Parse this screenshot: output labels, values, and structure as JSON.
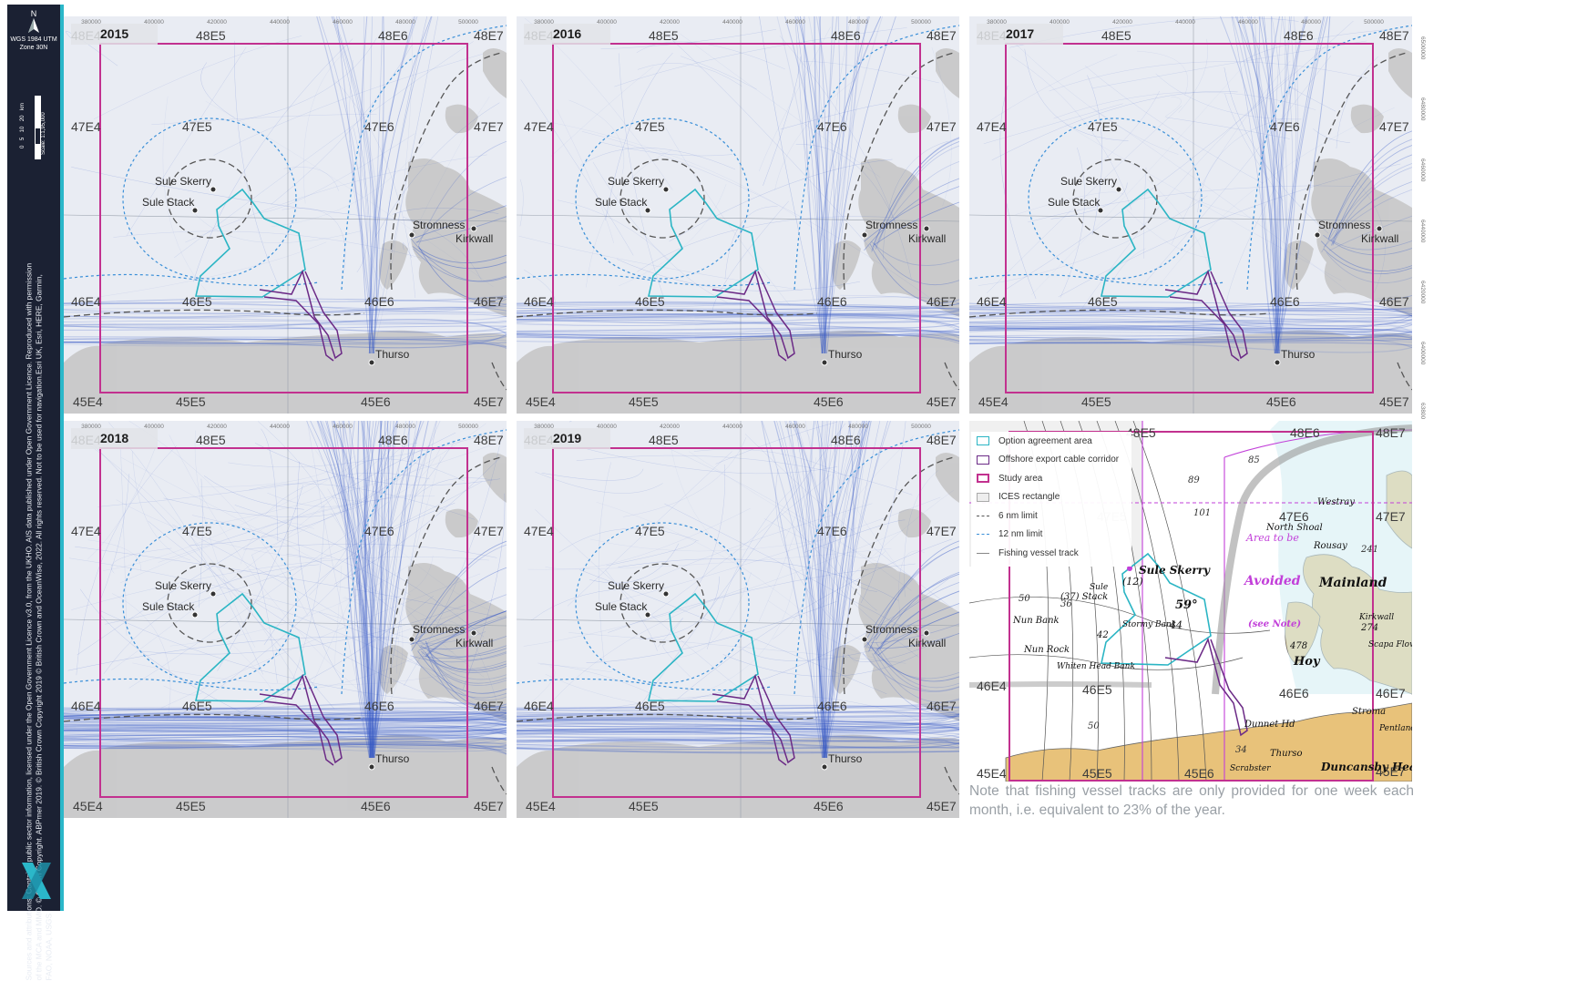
{
  "sidebar": {
    "north_symbol": "N",
    "crs_line1": "WGS 1984 UTM",
    "crs_line2": "Zone 30N",
    "scale_unit": "km",
    "scale_ticks": [
      "0",
      "5",
      "10",
      "20"
    ],
    "scale_text": "Scale: 1:1,95,000",
    "credits": "Sources and attributions: Contains public sector information, licensed under the Open Government Licence v3.0, from the UKHO. AIS data published under Open Government Licence. Reproduced with permission of the MCA and MMO. © Crown Copyright. ABPmer 2019. © British Crown Copyright 2019 © British Crown and OceanWise, 2022. All rights reserved. Not to be used for navigation.Esri UK, Esri, HERE, Garmin, FAO, NOAA, USGS"
  },
  "axis_ticks": [
    "380000",
    "400000",
    "420000",
    "440000",
    "460000",
    "480000",
    "500000"
  ],
  "right_ticks": [
    "6500000",
    "6480000",
    "6460000",
    "6440000",
    "6420000",
    "6400000",
    "6380000"
  ],
  "ices": {
    "top": [
      "48E4",
      "48E5",
      "48E6",
      "48E7"
    ],
    "upper": [
      "47E4",
      "47E5",
      "47E6",
      "47E7"
    ],
    "lower": [
      "46E4",
      "46E5",
      "46E6",
      "46E7"
    ],
    "bottom": [
      "45E4",
      "45E5",
      "45E6",
      "45E7"
    ]
  },
  "places": {
    "sule_skerry": "Sule Skerry",
    "sule_stack": "Sule Stack",
    "stromness": "Stromness",
    "kirkwall": "Kirkwall",
    "thurso": "Thurso"
  },
  "panels": [
    {
      "year": "2015",
      "density": 0.35
    },
    {
      "year": "2016",
      "density": 0.45
    },
    {
      "year": "2017",
      "density": 0.55
    },
    {
      "year": "2018",
      "density": 1.0
    },
    {
      "year": "2019",
      "density": 0.8
    }
  ],
  "chart_panel": {
    "sule_skerry_big": "Sule Skerry",
    "depth_12": "(12)",
    "stack_lbl": "(37) Stack",
    "sule_small": "Sule",
    "nun_bank": "Nun Bank",
    "n42": "42",
    "stormy_bank": "Stormy Bank",
    "n44": "44",
    "lat59": "59°",
    "nun_rock": "Nun Rock",
    "whiten_head": "Whiten Head Bank",
    "area_to_be": "Area to be",
    "avoided": "Avoided",
    "see_note": "(see Note)",
    "north_shoal": "North Shoal",
    "westray": "Westray",
    "rousay": "Rousay",
    "mainland": "Mainland",
    "hoy": "Hoy",
    "kirkwall_small": "Kirkwall",
    "n274": "274",
    "n478": "478",
    "scapa": "Scapa Flow",
    "stroma": "Stroma",
    "dunnet": "Dunnet Hd",
    "thurso_small": "Thurso",
    "duncansby": "Duncansby Head",
    "scrabster": "Scrabster",
    "pentland": "Pentland Fir",
    "depths": [
      "85",
      "89",
      "101",
      "50",
      "36",
      "50",
      "34",
      "241"
    ]
  },
  "legend": [
    {
      "label": "Option agreement area",
      "kind": "oaa"
    },
    {
      "label": "Offshore export cable corridor",
      "kind": "cable"
    },
    {
      "label": "Study area",
      "kind": "study"
    },
    {
      "label": "ICES rectangle",
      "kind": "ices"
    },
    {
      "label": "6 nm limit",
      "kind": "six"
    },
    {
      "label": "12 nm limit",
      "kind": "twelve"
    },
    {
      "label": "Fishing vessel track",
      "kind": "track"
    }
  ],
  "note": "Note that fishing vessel tracks are only provided for one week each month, i.e. equivalent to 23% of the year.",
  "colors": {
    "sea": "#e9ecf3",
    "land": "#c9c9c9",
    "track": "#3a5cc7",
    "study": "#c2318f",
    "oaa": "#2bb5c4",
    "cable": "#6b2a86",
    "six_nm": "#555555",
    "twelve_nm": "#3a8fd8",
    "sidebar": "#1b2133",
    "chart_land": "#e8c27a",
    "chart_sea": "#ffffff"
  }
}
